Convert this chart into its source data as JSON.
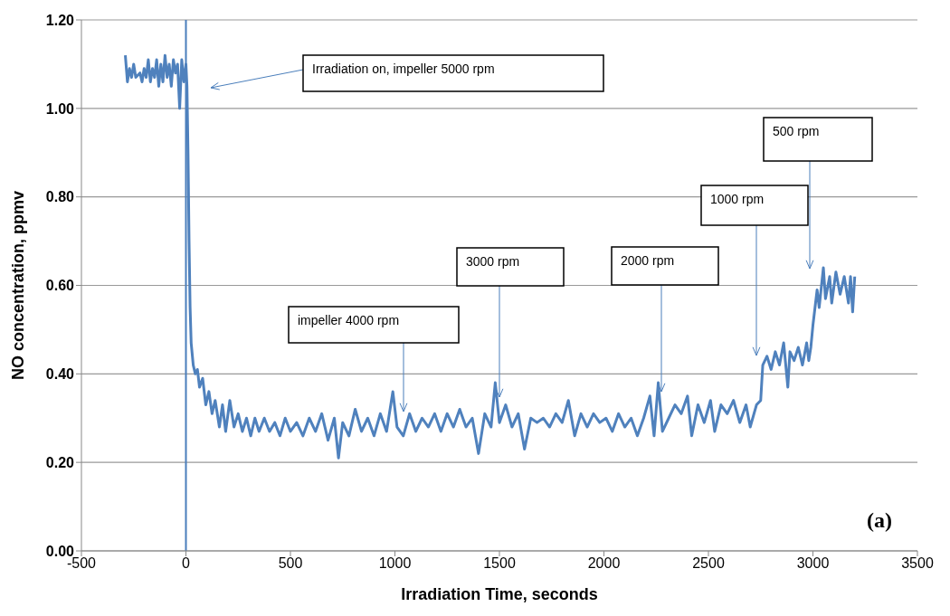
{
  "chart_data": {
    "type": "line",
    "xlabel": "Irradiation Time, seconds",
    "ylabel": "NO concentration, ppmv",
    "xlim": [
      -500,
      3500
    ],
    "xticks": [
      -500,
      0,
      500,
      1000,
      1500,
      2000,
      2500,
      3000,
      3500
    ],
    "ylim": [
      0,
      1.2
    ],
    "yticks": [
      {
        "value": 0,
        "label": "0.00"
      },
      {
        "value": 0.2,
        "label": "0.20"
      },
      {
        "value": 0.4,
        "label": "0.40"
      },
      {
        "value": 0.6,
        "label": "0.60"
      },
      {
        "value": 0.8,
        "label": "0.80"
      },
      {
        "value": 1,
        "label": "1.00"
      },
      {
        "value": 1.2,
        "label": "1.20"
      }
    ],
    "grid": "y",
    "legend": false,
    "marker": "none",
    "line_style": "solid",
    "ref_lines": [
      {
        "axis": "x",
        "value": 0,
        "color": "#4a7ebb"
      }
    ],
    "annotations": [
      "Irradiation on, impeller 5000 rpm",
      "impeller 4000 rpm",
      "3000 rpm",
      "2000 rpm",
      "1000 rpm",
      "500 rpm",
      "(a)"
    ],
    "series": [
      {
        "color": "#4f81bd",
        "x": [
          -290,
          -280,
          -270,
          -260,
          -250,
          -240,
          -220,
          -210,
          -200,
          -190,
          -180,
          -170,
          -160,
          -150,
          -140,
          -130,
          -120,
          -110,
          -100,
          -90,
          -80,
          -70,
          -60,
          -50,
          -40,
          -30,
          -20,
          -10,
          0,
          5,
          10,
          15,
          20,
          25,
          35,
          45,
          55,
          65,
          80,
          95,
          110,
          125,
          140,
          160,
          175,
          190,
          210,
          230,
          250,
          270,
          290,
          310,
          330,
          350,
          375,
          400,
          425,
          450,
          475,
          500,
          530,
          560,
          590,
          620,
          650,
          680,
          710,
          730,
          750,
          780,
          810,
          840,
          870,
          900,
          930,
          960,
          990,
          1010,
          1040,
          1070,
          1100,
          1130,
          1160,
          1190,
          1220,
          1250,
          1280,
          1310,
          1340,
          1370,
          1400,
          1430,
          1460,
          1480,
          1500,
          1530,
          1560,
          1590,
          1620,
          1650,
          1680,
          1710,
          1740,
          1770,
          1800,
          1830,
          1860,
          1890,
          1920,
          1950,
          1980,
          2010,
          2040,
          2070,
          2100,
          2130,
          2160,
          2190,
          2220,
          2240,
          2260,
          2280,
          2310,
          2340,
          2370,
          2400,
          2420,
          2450,
          2480,
          2510,
          2530,
          2560,
          2590,
          2620,
          2650,
          2680,
          2700,
          2730,
          2750,
          2760,
          2780,
          2800,
          2820,
          2840,
          2860,
          2880,
          2890,
          2910,
          2930,
          2950,
          2970,
          2980,
          2990,
          3000,
          3010,
          3020,
          3030,
          3050,
          3060,
          3080,
          3090,
          3110,
          3130,
          3150,
          3170,
          3180,
          3190,
          3200
        ],
        "values": [
          1.12,
          1.06,
          1.09,
          1.07,
          1.1,
          1.07,
          1.08,
          1.06,
          1.09,
          1.07,
          1.11,
          1.06,
          1.09,
          1.07,
          1.11,
          1.05,
          1.1,
          1.06,
          1.12,
          1.07,
          1.1,
          1.05,
          1.11,
          1.08,
          1.1,
          1.0,
          1.11,
          1.06,
          1.1,
          1.05,
          0.9,
          0.7,
          0.55,
          0.47,
          0.42,
          0.4,
          0.41,
          0.37,
          0.39,
          0.33,
          0.36,
          0.31,
          0.34,
          0.28,
          0.33,
          0.27,
          0.34,
          0.28,
          0.31,
          0.27,
          0.3,
          0.26,
          0.3,
          0.27,
          0.3,
          0.27,
          0.29,
          0.26,
          0.3,
          0.27,
          0.29,
          0.26,
          0.3,
          0.27,
          0.31,
          0.25,
          0.3,
          0.21,
          0.29,
          0.26,
          0.32,
          0.27,
          0.3,
          0.26,
          0.31,
          0.27,
          0.36,
          0.28,
          0.26,
          0.31,
          0.27,
          0.3,
          0.28,
          0.31,
          0.27,
          0.31,
          0.28,
          0.32,
          0.28,
          0.3,
          0.22,
          0.31,
          0.28,
          0.38,
          0.29,
          0.33,
          0.28,
          0.31,
          0.23,
          0.3,
          0.29,
          0.3,
          0.28,
          0.31,
          0.29,
          0.34,
          0.26,
          0.31,
          0.28,
          0.31,
          0.29,
          0.3,
          0.27,
          0.31,
          0.28,
          0.3,
          0.26,
          0.3,
          0.35,
          0.26,
          0.38,
          0.27,
          0.3,
          0.33,
          0.31,
          0.35,
          0.26,
          0.33,
          0.29,
          0.34,
          0.27,
          0.33,
          0.31,
          0.34,
          0.29,
          0.33,
          0.28,
          0.33,
          0.34,
          0.42,
          0.44,
          0.41,
          0.45,
          0.42,
          0.47,
          0.37,
          0.45,
          0.43,
          0.46,
          0.42,
          0.47,
          0.43,
          0.46,
          0.51,
          0.55,
          0.59,
          0.55,
          0.64,
          0.57,
          0.62,
          0.56,
          0.63,
          0.58,
          0.62,
          0.56,
          0.62,
          0.54,
          0.62
        ]
      }
    ]
  }
}
